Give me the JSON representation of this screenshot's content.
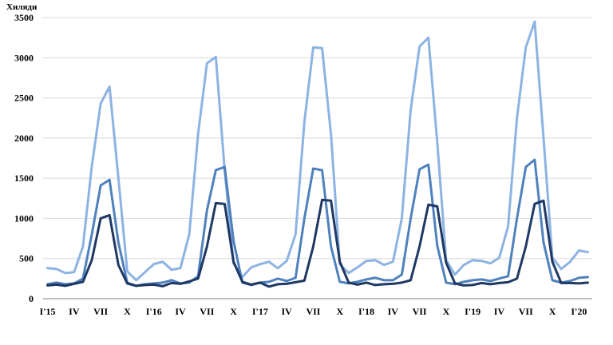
{
  "chart_data": {
    "type": "line",
    "ylabel": "Хиляди",
    "ylim": [
      0,
      3500
    ],
    "yticks": [
      0,
      500,
      1000,
      1500,
      2000,
      2500,
      3000,
      3500
    ],
    "y_grid": true,
    "x_tick_labels": [
      {
        "index": 0,
        "label": "I'15"
      },
      {
        "index": 3,
        "label": "IV"
      },
      {
        "index": 6,
        "label": "VII"
      },
      {
        "index": 9,
        "label": "X"
      },
      {
        "index": 12,
        "label": "I'16"
      },
      {
        "index": 15,
        "label": "IV"
      },
      {
        "index": 18,
        "label": "VII"
      },
      {
        "index": 21,
        "label": "X"
      },
      {
        "index": 24,
        "label": "I'17"
      },
      {
        "index": 27,
        "label": "IV"
      },
      {
        "index": 30,
        "label": "VII"
      },
      {
        "index": 33,
        "label": "X"
      },
      {
        "index": 36,
        "label": "I'18"
      },
      {
        "index": 39,
        "label": "IV"
      },
      {
        "index": 42,
        "label": "VII"
      },
      {
        "index": 45,
        "label": "X"
      },
      {
        "index": 48,
        "label": "I'19"
      },
      {
        "index": 51,
        "label": "IV"
      },
      {
        "index": 54,
        "label": "VII"
      },
      {
        "index": 57,
        "label": "X"
      },
      {
        "index": 60,
        "label": "I'20"
      }
    ],
    "series": [
      {
        "color": "#8db3e2",
        "values": [
          380,
          370,
          320,
          330,
          650,
          1650,
          2430,
          2640,
          1500,
          340,
          230,
          330,
          430,
          460,
          360,
          380,
          800,
          2050,
          2930,
          3010,
          1600,
          440,
          270,
          390,
          430,
          460,
          380,
          470,
          800,
          2200,
          3130,
          3120,
          2050,
          430,
          320,
          390,
          470,
          480,
          420,
          460,
          1000,
          2350,
          3140,
          3250,
          1950,
          480,
          300,
          420,
          480,
          470,
          440,
          510,
          900,
          2250,
          3130,
          3450,
          2000,
          510,
          370,
          460,
          600,
          580
        ]
      },
      {
        "color": "#4f81bd",
        "values": [
          180,
          200,
          180,
          190,
          250,
          800,
          1410,
          1480,
          700,
          200,
          160,
          180,
          190,
          200,
          230,
          190,
          200,
          280,
          1100,
          1600,
          1640,
          720,
          200,
          170,
          200,
          210,
          250,
          220,
          260,
          1000,
          1620,
          1600,
          650,
          210,
          190,
          210,
          240,
          260,
          230,
          230,
          300,
          1000,
          1610,
          1670,
          660,
          200,
          180,
          210,
          230,
          240,
          220,
          250,
          280,
          1000,
          1640,
          1730,
          700,
          230,
          200,
          220,
          260,
          270
        ]
      },
      {
        "color": "#1f3864",
        "values": [
          165,
          175,
          160,
          185,
          210,
          480,
          1000,
          1040,
          420,
          190,
          160,
          170,
          175,
          155,
          195,
          185,
          215,
          250,
          650,
          1190,
          1180,
          460,
          210,
          175,
          200,
          150,
          180,
          185,
          205,
          225,
          650,
          1230,
          1220,
          460,
          200,
          175,
          200,
          170,
          180,
          185,
          200,
          230,
          650,
          1170,
          1150,
          450,
          190,
          165,
          170,
          195,
          180,
          195,
          205,
          250,
          650,
          1180,
          1220,
          460,
          195,
          195,
          190,
          200
        ]
      }
    ]
  }
}
